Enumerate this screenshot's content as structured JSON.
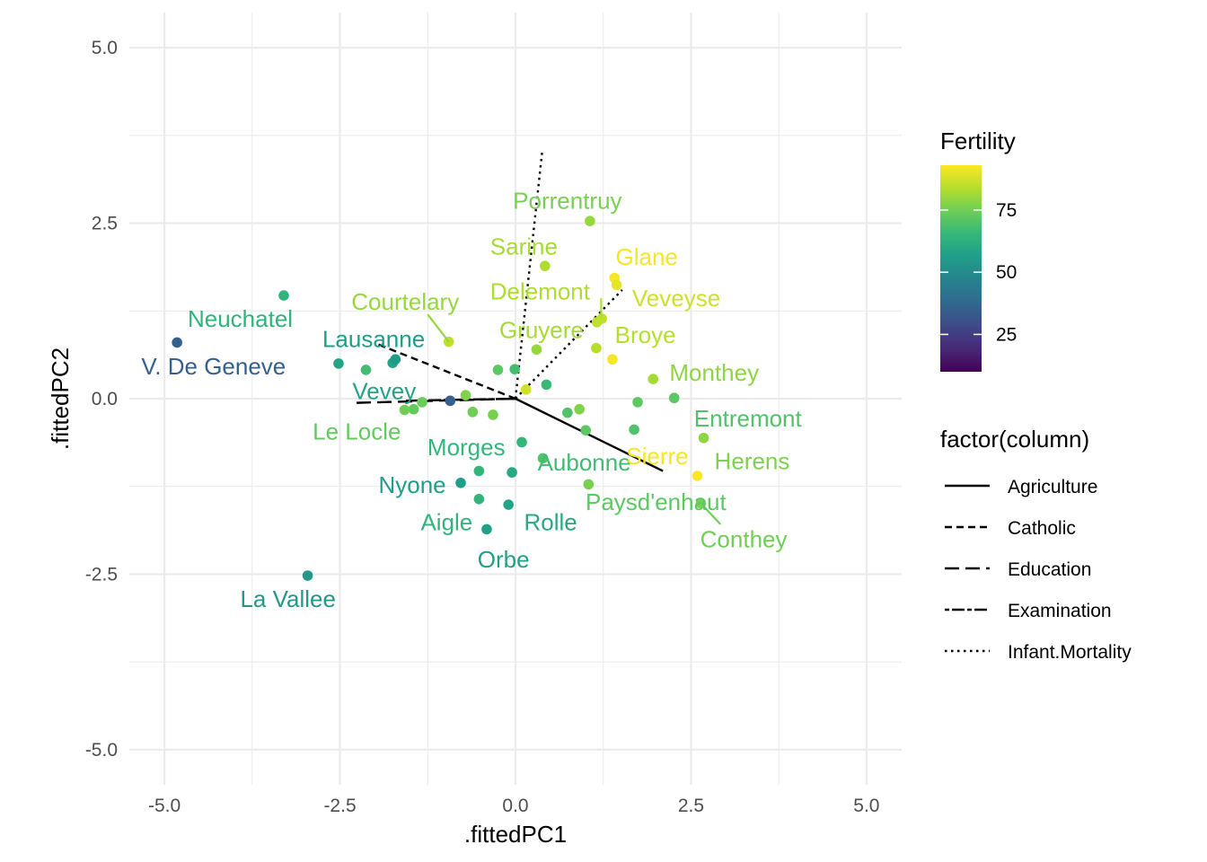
{
  "chart_data": {
    "type": "scatter",
    "xlabel": ".fittedPC1",
    "ylabel": ".fittedPC2",
    "xlim": [
      -5.5,
      5.5
    ],
    "ylim": [
      -5.5,
      5.5
    ],
    "x_ticks": [
      -5.0,
      -2.5,
      0.0,
      2.5,
      5.0
    ],
    "x_tick_labels": [
      "-5.0",
      "-2.5",
      "0.0",
      "2.5",
      "5.0"
    ],
    "y_ticks": [
      -5.0,
      -2.5,
      0.0,
      2.5,
      5.0
    ],
    "y_tick_labels": [
      "-5.0",
      "-2.5",
      "0.0",
      "2.5",
      "5.0"
    ],
    "grid": true,
    "color_legend": {
      "title": "Fertility",
      "range": [
        10,
        93
      ],
      "ticks": [
        25,
        50,
        75
      ],
      "tick_labels": [
        "25",
        "50",
        "75"
      ],
      "placement": "right"
    },
    "line_legend": {
      "title": "factor(column)",
      "placement": "right",
      "entries": [
        {
          "label": "Agriculture",
          "dash": "solid"
        },
        {
          "label": "Catholic",
          "dash": "dashed"
        },
        {
          "label": "Education",
          "dash": "longdash"
        },
        {
          "label": "Examination",
          "dash": "twodash"
        },
        {
          "label": "Infant.Mortality",
          "dash": "dotted"
        }
      ]
    },
    "points": [
      {
        "x": 1.06,
        "y": 2.53,
        "fertility": 80
      },
      {
        "x": 0.42,
        "y": 1.89,
        "fertility": 83
      },
      {
        "x": 1.41,
        "y": 1.72,
        "fertility": 92
      },
      {
        "x": 1.44,
        "y": 1.62,
        "fertility": 90
      },
      {
        "x": 1.23,
        "y": 1.14,
        "fertility": 85
      },
      {
        "x": 1.16,
        "y": 1.09,
        "fertility": 85
      },
      {
        "x": -0.95,
        "y": 0.81,
        "fertility": 85
      },
      {
        "x": 0.3,
        "y": 0.7,
        "fertility": 80
      },
      {
        "x": 1.15,
        "y": 0.72,
        "fertility": 84
      },
      {
        "x": 1.38,
        "y": 0.56,
        "fertility": 92
      },
      {
        "x": -3.3,
        "y": 1.47,
        "fertility": 64
      },
      {
        "x": -4.82,
        "y": 0.8,
        "fertility": 35
      },
      {
        "x": -2.52,
        "y": 0.5,
        "fertility": 58
      },
      {
        "x": -2.13,
        "y": 0.41,
        "fertility": 68
      },
      {
        "x": -1.75,
        "y": 0.51,
        "fertility": 58
      },
      {
        "x": -1.71,
        "y": 0.56,
        "fertility": 55
      },
      {
        "x": -0.25,
        "y": 0.41,
        "fertility": 72
      },
      {
        "x": -0.01,
        "y": 0.42,
        "fertility": 68
      },
      {
        "x": 0.44,
        "y": 0.2,
        "fertility": 66
      },
      {
        "x": 0.15,
        "y": 0.13,
        "fertility": 87
      },
      {
        "x": 1.96,
        "y": 0.28,
        "fertility": 82
      },
      {
        "x": 2.26,
        "y": 0.01,
        "fertility": 72
      },
      {
        "x": 1.74,
        "y": -0.05,
        "fertility": 72
      },
      {
        "x": 0.91,
        "y": -0.15,
        "fertility": 77
      },
      {
        "x": 0.74,
        "y": -0.2,
        "fertility": 70
      },
      {
        "x": 1.0,
        "y": -0.45,
        "fertility": 72
      },
      {
        "x": 1.69,
        "y": -0.44,
        "fertility": 70
      },
      {
        "x": 2.68,
        "y": -0.56,
        "fertility": 79
      },
      {
        "x": 2.59,
        "y": -1.1,
        "fertility": 93
      },
      {
        "x": 1.04,
        "y": -1.22,
        "fertility": 76
      },
      {
        "x": 2.64,
        "y": -1.49,
        "fertility": 76
      },
      {
        "x": -0.71,
        "y": 0.05,
        "fertility": 77
      },
      {
        "x": -0.93,
        "y": -0.03,
        "fertility": 35
      },
      {
        "x": -1.33,
        "y": -0.05,
        "fertility": 74
      },
      {
        "x": -1.45,
        "y": -0.15,
        "fertility": 73
      },
      {
        "x": -1.58,
        "y": -0.16,
        "fertility": 75
      },
      {
        "x": -0.61,
        "y": -0.19,
        "fertility": 75
      },
      {
        "x": -0.32,
        "y": -0.23,
        "fertility": 76
      },
      {
        "x": 0.09,
        "y": -0.62,
        "fertility": 65
      },
      {
        "x": 0.39,
        "y": -0.85,
        "fertility": 70
      },
      {
        "x": -0.52,
        "y": -1.03,
        "fertility": 65
      },
      {
        "x": -0.05,
        "y": -1.05,
        "fertility": 60
      },
      {
        "x": -0.78,
        "y": -1.2,
        "fertility": 56
      },
      {
        "x": -0.52,
        "y": -1.43,
        "fertility": 64
      },
      {
        "x": -0.1,
        "y": -1.51,
        "fertility": 58
      },
      {
        "x": -0.41,
        "y": -1.86,
        "fertility": 57
      },
      {
        "x": -2.96,
        "y": -2.52,
        "fertility": 54
      }
    ],
    "labels": [
      {
        "text": "Porrentruy",
        "x": 0.74,
        "y": 2.82,
        "fertility": 76,
        "leader": null
      },
      {
        "text": "Sarine",
        "x": 0.12,
        "y": 2.17,
        "fertility": 82,
        "leader": null
      },
      {
        "text": "Glane",
        "x": 1.87,
        "y": 2.02,
        "fertility": 92,
        "leader": null
      },
      {
        "text": "Delemont",
        "x": 0.35,
        "y": 1.53,
        "fertility": 83,
        "leader": [
          1.22,
          1.16,
          1.22,
          1.43
        ]
      },
      {
        "text": "Veveyse",
        "x": 2.29,
        "y": 1.43,
        "fertility": 87,
        "leader": null
      },
      {
        "text": "Courtelary",
        "x": -1.57,
        "y": 1.38,
        "fertility": 80,
        "leader": [
          -0.95,
          0.81,
          -1.25,
          1.2
        ]
      },
      {
        "text": "Neuchatel",
        "x": -3.92,
        "y": 1.14,
        "fertility": 64,
        "leader": null
      },
      {
        "text": "Gruyere",
        "x": 0.37,
        "y": 0.98,
        "fertility": 82,
        "leader": null
      },
      {
        "text": "Lausanne",
        "x": -2.02,
        "y": 0.85,
        "fertility": 56,
        "leader": null
      },
      {
        "text": "Broye",
        "x": 1.85,
        "y": 0.91,
        "fertility": 84,
        "leader": null
      },
      {
        "text": "V. De Geneve",
        "x": -4.3,
        "y": 0.46,
        "fertility": 35,
        "leader": null
      },
      {
        "text": "Monthey",
        "x": 2.83,
        "y": 0.37,
        "fertility": 79,
        "leader": null
      },
      {
        "text": "Vevey",
        "x": -1.87,
        "y": 0.11,
        "fertility": 58,
        "leader": null
      },
      {
        "text": "Entremont",
        "x": 3.31,
        "y": -0.28,
        "fertility": 70,
        "leader": null
      },
      {
        "text": "Le Locle",
        "x": -2.26,
        "y": -0.47,
        "fertility": 73,
        "leader": null
      },
      {
        "text": "Morges",
        "x": -0.7,
        "y": -0.69,
        "fertility": 65,
        "leader": null
      },
      {
        "text": "Aubonne",
        "x": 0.98,
        "y": -0.91,
        "fertility": 67,
        "leader": null
      },
      {
        "text": "Sierre",
        "x": 2.02,
        "y": -0.82,
        "fertility": 92,
        "leader": null
      },
      {
        "text": "Herens",
        "x": 3.37,
        "y": -0.89,
        "fertility": 77,
        "leader": null
      },
      {
        "text": "Nyone",
        "x": -1.47,
        "y": -1.23,
        "fertility": 56,
        "leader": null
      },
      {
        "text": "Paysd'enhaut",
        "x": 2.0,
        "y": -1.47,
        "fertility": 72,
        "leader": null
      },
      {
        "text": "Aigle",
        "x": -0.98,
        "y": -1.76,
        "fertility": 64,
        "leader": null
      },
      {
        "text": "Rolle",
        "x": 0.5,
        "y": -1.76,
        "fertility": 60,
        "leader": null
      },
      {
        "text": "Conthey",
        "x": 3.25,
        "y": -2.0,
        "fertility": 75,
        "leader": [
          2.64,
          -1.49,
          2.92,
          -1.79
        ]
      },
      {
        "text": "Orbe",
        "x": -0.17,
        "y": -2.29,
        "fertility": 57,
        "leader": null
      },
      {
        "text": "La Vallee",
        "x": -3.24,
        "y": -2.85,
        "fertility": 54,
        "leader": null
      }
    ],
    "loadings": [
      {
        "name": "Agriculture",
        "x": 2.1,
        "y": -1.03,
        "dash": "solid"
      },
      {
        "name": "Catholic",
        "x": -1.95,
        "y": 0.77,
        "dash": "dashed"
      },
      {
        "name": "Education",
        "x": -2.3,
        "y": -0.06,
        "dash": "longdash"
      },
      {
        "name": "Examination",
        "x": -1.6,
        "y": -0.03,
        "dash": "twodash"
      },
      {
        "name": "Infant.Mortality",
        "x": 0.38,
        "y": 3.52,
        "dash": "dotted"
      }
    ],
    "extra_loading_segment": {
      "x": 1.52,
      "y": 1.55,
      "dash": "dotted"
    }
  }
}
